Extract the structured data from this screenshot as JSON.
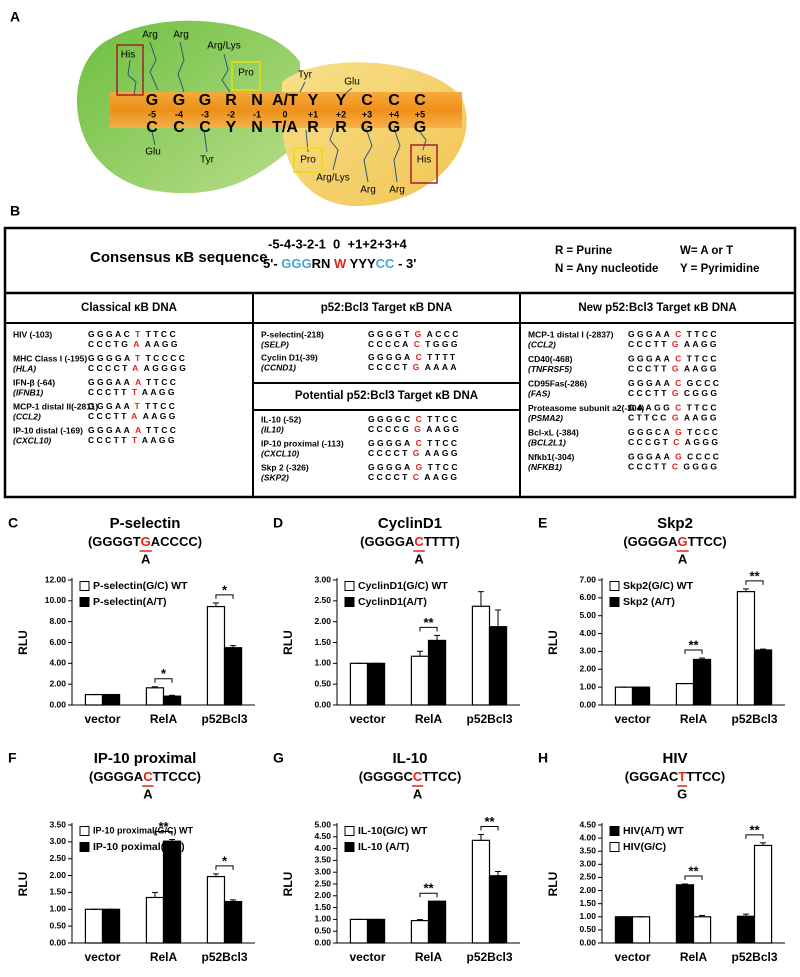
{
  "panel_a": {
    "label": "A",
    "top_residues": [
      "His",
      "Arg",
      "Arg",
      "Arg/Lys",
      "Pro",
      "Tyr",
      "Glu"
    ],
    "top_sequence": [
      "G",
      "G",
      "G",
      "R",
      "N",
      "A/T",
      "Y",
      "Y",
      "C",
      "C",
      "C"
    ],
    "positions": [
      "-5",
      "-4",
      "-3",
      "-2",
      "-1",
      "0",
      "+1",
      "+2",
      "+3",
      "+4",
      "+5"
    ],
    "bottom_sequence": [
      "C",
      "C",
      "C",
      "Y",
      "N",
      "T/A",
      "R",
      "R",
      "G",
      "G",
      "G"
    ],
    "bottom_residues": [
      "Glu",
      "Tyr",
      "Pro",
      "Arg/Lys",
      "Arg",
      "Arg",
      "His"
    ]
  },
  "panel_b": {
    "label": "B",
    "consensus": {
      "title": "Consensus κB sequence",
      "positions": "-5-4-3-2-1  0  +1+2+3+4",
      "sequence": [
        {
          "text": "5'- ",
          "color": "#000000"
        },
        {
          "text": "GGG",
          "color": "#3fa9d6"
        },
        {
          "text": "RN ",
          "color": "#000000"
        },
        {
          "text": "W",
          "color": "#e2231a"
        },
        {
          "text": " YYY",
          "color": "#000000"
        },
        {
          "text": "CC",
          "color": "#3fa9d6"
        },
        {
          "text": " - 3'",
          "color": "#000000"
        }
      ],
      "legend": [
        "R = Purine",
        "N = Any nucleotide",
        "W= A or T",
        "Y = Pyrimidine"
      ]
    },
    "sections": [
      {
        "title": "Classical κB DNA",
        "rows": [
          {
            "name": "HIV (-103)",
            "top": [
              "GGGAC",
              "T",
              "TTCC"
            ],
            "bottom": [
              "CCCTG",
              "A",
              "AAGG"
            ]
          },
          {
            "name": "MHC Class I (-195)",
            "gene": "(HLA)",
            "top": [
              "GGGGA",
              "T",
              "TCCCC"
            ],
            "bottom": [
              "CCCCT",
              "A",
              "AGGGG"
            ]
          },
          {
            "name": "IFN-β (-64)",
            "gene": "(IFNB1)",
            "top": [
              "GGGAA",
              "A",
              "TTCC"
            ],
            "bottom": [
              "CCCTT",
              "T",
              "AAGG"
            ]
          },
          {
            "name": "MCP-1 distal II(-2811)",
            "gene": "(CCL2)",
            "top": [
              "GGGAA",
              "T",
              "TTCC"
            ],
            "bottom": [
              "CCCTT",
              "A",
              "AAGG"
            ]
          },
          {
            "name": "IP-10 distal (-169)",
            "gene": "(CXCL10)",
            "top": [
              "GGGAA",
              "A",
              "TTCC"
            ],
            "bottom": [
              "CCCTT",
              "T",
              "AAGG"
            ]
          }
        ]
      },
      {
        "title": "p52:Bcl3 Target κB DNA",
        "rows": [
          {
            "name": "P-selectin(-218)",
            "gene": "(SELP)",
            "top": [
              "GGGGT",
              "G",
              "ACCC"
            ],
            "bottom": [
              "CCCCA",
              "C",
              "TGGG"
            ]
          },
          {
            "name": "Cyclin D1(-39)",
            "gene": "(CCND1)",
            "top": [
              "GGGGA",
              "C",
              "TTTT"
            ],
            "bottom": [
              "CCCCT",
              "G",
              "AAAA"
            ]
          }
        ]
      },
      {
        "title": "Potential p52:Bcl3 Target κB DNA",
        "rows": [
          {
            "name": "IL-10 (-52)",
            "gene": "(IL10)",
            "top": [
              "GGGGC",
              "C",
              "TTCC"
            ],
            "bottom": [
              "CCCCG",
              "G",
              "AAGG"
            ]
          },
          {
            "name": "IP-10 proximal (-113)",
            "gene": "(CXCL10)",
            "top": [
              "GGGGA",
              "C",
              "TTCC"
            ],
            "bottom": [
              "CCCCT",
              "G",
              "AAGG"
            ]
          },
          {
            "name": "Skp 2 (-326)",
            "gene": "(SKP2)",
            "top": [
              "GGGGA",
              "G",
              "TTCC"
            ],
            "bottom": [
              "CCCCT",
              "C",
              "AAGG"
            ]
          }
        ]
      },
      {
        "title": "New p52:Bcl3 Target κB DNA",
        "rows": [
          {
            "name": "MCP-1 distal I (-2837)",
            "gene": "(CCL2)",
            "top": [
              "GGGAA",
              "C",
              "TTCC"
            ],
            "bottom": [
              "CCCTT",
              "G",
              "AAGG"
            ]
          },
          {
            "name": "CD40(-468)",
            "gene": "(TNFRSF5)",
            "top": [
              "GGGAA",
              "C",
              "TTCC"
            ],
            "bottom": [
              "CCCTT",
              "G",
              "AAGG"
            ]
          },
          {
            "name": "CD95Fas(-286)",
            "gene": "(FAS)",
            "top": [
              "GGGAA",
              "C",
              "GCCC"
            ],
            "bottom": [
              "CCCTT",
              "G",
              "CGGG"
            ]
          },
          {
            "name": "Proteasome subunit a2(-304)",
            "gene": "(PSMA2)",
            "top": [
              "GAAGG",
              "C",
              "TTCC"
            ],
            "bottom": [
              "CTTCC",
              "G",
              "AAGG"
            ]
          },
          {
            "name": "Bcl-xL (-384)",
            "gene": "(BCL2L1)",
            "top": [
              "GGGCA",
              "G",
              "TCCC"
            ],
            "bottom": [
              "CCCGT",
              "C",
              "AGGG"
            ]
          },
          {
            "name": "Nfkb1(-304)",
            "gene": "(NFKB1)",
            "top": [
              "GGGAA",
              "G",
              "CCCC"
            ],
            "bottom": [
              "CCCTT",
              "C",
              "GGGG"
            ]
          }
        ]
      }
    ]
  },
  "chart_data": [
    {
      "type": "bar",
      "panel": "C",
      "title": "P-selectin",
      "sequence": {
        "before": "(GGGGT",
        "mut": "G",
        "after": "ACCCC)",
        "alt": "A"
      },
      "categories": [
        "vector",
        "RelA",
        "p52Bcl3"
      ],
      "ylabel": "RLU",
      "legend": "upper left",
      "series": [
        {
          "name": "P-selectin(G/C) WT",
          "color": "#ffffff",
          "values": [
            1.0,
            1.65,
            9.45
          ],
          "errors": [
            0,
            0.1,
            0.35
          ]
        },
        {
          "name": "P-selectin(A/T)",
          "color": "#000000",
          "values": [
            1.0,
            0.85,
            5.5
          ],
          "errors": [
            0,
            0.08,
            0.2
          ]
        }
      ],
      "significance": [
        null,
        "*",
        "*"
      ],
      "ylim": [
        0,
        12
      ],
      "yticks": [
        {
          "value": 0,
          "label": "0.00"
        },
        {
          "value": 2,
          "label": "2.00"
        },
        {
          "value": 4,
          "label": "4.00"
        },
        {
          "value": 6,
          "label": "6.00"
        },
        {
          "value": 8,
          "label": "8.00"
        },
        {
          "value": 10,
          "label": "10.00"
        },
        {
          "value": 12,
          "label": "12.00"
        }
      ]
    },
    {
      "type": "bar",
      "panel": "D",
      "title": "CyclinD1",
      "sequence": {
        "before": "(GGGGA",
        "mut": "C",
        "after": "TTTT)",
        "alt": "A"
      },
      "categories": [
        "vector",
        "RelA",
        "p52Bcl3"
      ],
      "ylabel": "RLU",
      "legend": "upper left",
      "series": [
        {
          "name": "CyclinD1(G/C) WT",
          "color": "#ffffff",
          "values": [
            1.0,
            1.17,
            2.37
          ],
          "errors": [
            0,
            0.12,
            0.35
          ]
        },
        {
          "name": "CyclinD1(A/T)",
          "color": "#000000",
          "values": [
            1.0,
            1.55,
            1.88
          ],
          "errors": [
            0,
            0.12,
            0.4
          ]
        }
      ],
      "significance": [
        null,
        "**",
        null
      ],
      "ylim": [
        0,
        3
      ],
      "yticks": [
        {
          "value": 0,
          "label": "0.00"
        },
        {
          "value": 0.5,
          "label": "0.50"
        },
        {
          "value": 1,
          "label": "1.00"
        },
        {
          "value": 1.5,
          "label": "1.50"
        },
        {
          "value": 2,
          "label": "2.00"
        },
        {
          "value": 2.5,
          "label": "2.50"
        },
        {
          "value": 3,
          "label": "3.00"
        }
      ]
    },
    {
      "type": "bar",
      "panel": "E",
      "title": "Skp2",
      "sequence": {
        "before": "(GGGGA",
        "mut": "G",
        "after": "TTCC)",
        "alt": "A"
      },
      "categories": [
        "vector",
        "RelA",
        "p52Bcl3"
      ],
      "ylabel": "RLU",
      "legend": "upper left",
      "series": [
        {
          "name": "Skp2(G/C) WT",
          "color": "#ffffff",
          "values": [
            1.0,
            1.2,
            6.35
          ],
          "errors": [
            0,
            0,
            0.15
          ]
        },
        {
          "name": "Skp2 (A/T)",
          "color": "#000000",
          "values": [
            1.0,
            2.55,
            3.08
          ],
          "errors": [
            0,
            0.08,
            0.05
          ]
        }
      ],
      "significance": [
        null,
        "**",
        "**"
      ],
      "ylim": [
        0,
        7
      ],
      "yticks": [
        {
          "value": 0,
          "label": "0.00"
        },
        {
          "value": 1,
          "label": "1.00"
        },
        {
          "value": 2,
          "label": "2.00"
        },
        {
          "value": 3,
          "label": "3.00"
        },
        {
          "value": 4,
          "label": "4.00"
        },
        {
          "value": 5,
          "label": "5.00"
        },
        {
          "value": 6,
          "label": "6.00"
        },
        {
          "value": 7,
          "label": "7.00"
        }
      ]
    },
    {
      "type": "bar",
      "panel": "F",
      "title": "IP-10 proximal",
      "sequence": {
        "before": "(GGGGA",
        "mut": "C",
        "after": "TTCCC)",
        "alt": "A"
      },
      "categories": [
        "vector",
        "RelA",
        "p52Bcl3"
      ],
      "ylabel": "RLU",
      "legend": "upper left",
      "series": [
        {
          "name": "IP-10 proximal(G/C) WT",
          "color": "#ffffff",
          "values": [
            1.0,
            1.35,
            1.97
          ],
          "errors": [
            0,
            0.15,
            0.08
          ]
        },
        {
          "name": "IP-10 poximal(A/T)",
          "color": "#000000",
          "values": [
            1.0,
            3.02,
            1.23
          ],
          "errors": [
            0,
            0.05,
            0.05
          ]
        }
      ],
      "significance": [
        null,
        "**",
        "*"
      ],
      "ylim": [
        0,
        3.5
      ],
      "yticks": [
        {
          "value": 0,
          "label": "0.00"
        },
        {
          "value": 0.5,
          "label": "0.50"
        },
        {
          "value": 1,
          "label": "1.00"
        },
        {
          "value": 1.5,
          "label": "1.50"
        },
        {
          "value": 2,
          "label": "2.00"
        },
        {
          "value": 2.5,
          "label": "2.50"
        },
        {
          "value": 3,
          "label": "3.00"
        },
        {
          "value": 3.5,
          "label": "3.50"
        }
      ]
    },
    {
      "type": "bar",
      "panel": "G",
      "title": "IL-10",
      "sequence": {
        "before": "(GGGGC",
        "mut": "C",
        "after": "TTCC)",
        "alt": "A"
      },
      "categories": [
        "vector",
        "RelA",
        "p52Bcl3"
      ],
      "ylabel": "RLU",
      "legend": "upper left",
      "series": [
        {
          "name": "IL-10(G/C) WT",
          "color": "#ffffff",
          "values": [
            1.0,
            0.95,
            4.35
          ],
          "errors": [
            0,
            0.04,
            0.25
          ]
        },
        {
          "name": "IL-10 (A/T)",
          "color": "#000000",
          "values": [
            1.0,
            1.77,
            2.85
          ],
          "errors": [
            0,
            0,
            0.18
          ]
        }
      ],
      "significance": [
        null,
        "**",
        "**"
      ],
      "ylim": [
        0,
        5
      ],
      "yticks": [
        {
          "value": 0,
          "label": "0.00"
        },
        {
          "value": 0.5,
          "label": "0.50"
        },
        {
          "value": 1,
          "label": "1.00"
        },
        {
          "value": 1.5,
          "label": "1.50"
        },
        {
          "value": 2,
          "label": "2.00"
        },
        {
          "value": 2.5,
          "label": "2.50"
        },
        {
          "value": 3,
          "label": "3.00"
        },
        {
          "value": 3.5,
          "label": "3.50"
        },
        {
          "value": 4,
          "label": "4.00"
        },
        {
          "value": 4.5,
          "label": "4.50"
        },
        {
          "value": 5,
          "label": "5.00"
        }
      ]
    },
    {
      "type": "bar",
      "panel": "H",
      "title": "HIV",
      "sequence": {
        "before": "(GGGAC",
        "mut": "T",
        "after": "TTCC)",
        "alt": "G"
      },
      "categories": [
        "vector",
        "RelA",
        "p52Bcl3"
      ],
      "ylabel": "RLU",
      "legend": "upper left",
      "series": [
        {
          "name": "HIV(A/T) WT",
          "color": "#000000",
          "values": [
            1.0,
            2.22,
            1.02
          ],
          "errors": [
            0,
            0.03,
            0.08
          ]
        },
        {
          "name": "HIV(G/C)",
          "color": "#ffffff",
          "values": [
            1.0,
            1.0,
            3.72
          ],
          "errors": [
            0,
            0.05,
            0.1
          ]
        }
      ],
      "significance": [
        null,
        "**",
        "**"
      ],
      "ylim": [
        0,
        4.5
      ],
      "yticks": [
        {
          "value": 0,
          "label": "0.00"
        },
        {
          "value": 0.5,
          "label": "0.50"
        },
        {
          "value": 1,
          "label": "1.00"
        },
        {
          "value": 1.5,
          "label": "1.50"
        },
        {
          "value": 2,
          "label": "2.00"
        },
        {
          "value": 2.5,
          "label": "2.50"
        },
        {
          "value": 3,
          "label": "3.00"
        },
        {
          "value": 3.5,
          "label": "3.50"
        },
        {
          "value": 4,
          "label": "4.00"
        },
        {
          "value": 4.5,
          "label": "4.50"
        }
      ]
    }
  ]
}
